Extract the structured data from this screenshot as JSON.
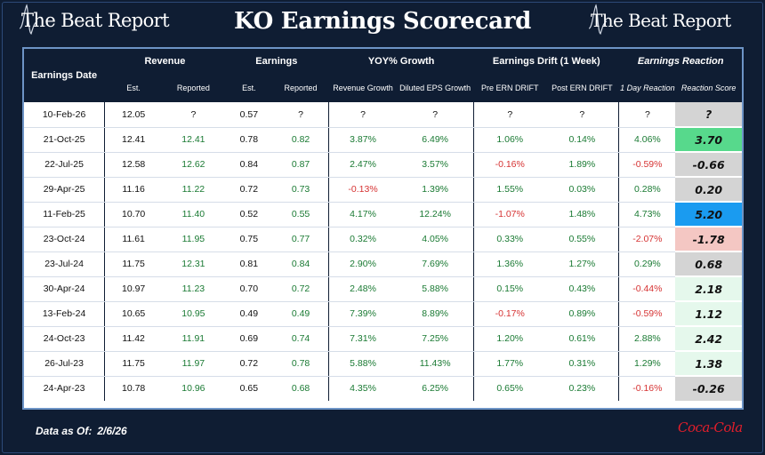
{
  "header": {
    "logo_left": "The Beat Report",
    "logo_right": "The Beat Report",
    "title": "KO Earnings Scorecard"
  },
  "table": {
    "group_headers": {
      "date": "Earnings Date",
      "revenue": "Revenue",
      "earnings": "Earnings",
      "yoy": "YOY% Growth",
      "drift": "Earnings Drift (1 Week)",
      "reaction": "Earnings Reaction"
    },
    "sub_headers": {
      "rev_est": "Est.",
      "rev_rep": "Reported",
      "earn_est": "Est.",
      "earn_rep": "Reported",
      "rev_growth": "Revenue Growth",
      "eps_growth": "Diluted EPS Growth",
      "pre_drift": "Pre ERN DRIFT",
      "post_drift": "Post ERN DRIFT",
      "day_reaction": "1 Day Reaction",
      "score": "Reaction Score"
    },
    "rows": [
      {
        "date": "10-Feb-26",
        "rev_est": "12.05",
        "rev_rep": "?",
        "earn_est": "0.57",
        "earn_rep": "?",
        "rev_growth": "?",
        "eps_growth": "?",
        "pre_drift": "?",
        "post_drift": "?",
        "day_reaction": "?",
        "score": "?"
      },
      {
        "date": "21-Oct-25",
        "rev_est": "12.41",
        "rev_rep": "12.41",
        "earn_est": "0.78",
        "earn_rep": "0.82",
        "rev_growth": "3.87%",
        "eps_growth": "6.49%",
        "pre_drift": "1.06%",
        "post_drift": "0.14%",
        "day_reaction": "4.06%",
        "score": "3.70"
      },
      {
        "date": "22-Jul-25",
        "rev_est": "12.58",
        "rev_rep": "12.62",
        "earn_est": "0.84",
        "earn_rep": "0.87",
        "rev_growth": "2.47%",
        "eps_growth": "3.57%",
        "pre_drift": "-0.16%",
        "post_drift": "1.89%",
        "day_reaction": "-0.59%",
        "score": "-0.66"
      },
      {
        "date": "29-Apr-25",
        "rev_est": "11.16",
        "rev_rep": "11.22",
        "earn_est": "0.72",
        "earn_rep": "0.73",
        "rev_growth": "-0.13%",
        "eps_growth": "1.39%",
        "pre_drift": "1.55%",
        "post_drift": "0.03%",
        "day_reaction": "0.28%",
        "score": "0.20"
      },
      {
        "date": "11-Feb-25",
        "rev_est": "10.70",
        "rev_rep": "11.40",
        "earn_est": "0.52",
        "earn_rep": "0.55",
        "rev_growth": "4.17%",
        "eps_growth": "12.24%",
        "pre_drift": "-1.07%",
        "post_drift": "1.48%",
        "day_reaction": "4.73%",
        "score": "5.20"
      },
      {
        "date": "23-Oct-24",
        "rev_est": "11.61",
        "rev_rep": "11.95",
        "earn_est": "0.75",
        "earn_rep": "0.77",
        "rev_growth": "0.32%",
        "eps_growth": "4.05%",
        "pre_drift": "0.33%",
        "post_drift": "0.55%",
        "day_reaction": "-2.07%",
        "score": "-1.78"
      },
      {
        "date": "23-Jul-24",
        "rev_est": "11.75",
        "rev_rep": "12.31",
        "earn_est": "0.81",
        "earn_rep": "0.84",
        "rev_growth": "2.90%",
        "eps_growth": "7.69%",
        "pre_drift": "1.36%",
        "post_drift": "1.27%",
        "day_reaction": "0.29%",
        "score": "0.68"
      },
      {
        "date": "30-Apr-24",
        "rev_est": "10.97",
        "rev_rep": "11.23",
        "earn_est": "0.70",
        "earn_rep": "0.72",
        "rev_growth": "2.48%",
        "eps_growth": "5.88%",
        "pre_drift": "0.15%",
        "post_drift": "0.43%",
        "day_reaction": "-0.44%",
        "score": "2.18"
      },
      {
        "date": "13-Feb-24",
        "rev_est": "10.65",
        "rev_rep": "10.95",
        "earn_est": "0.49",
        "earn_rep": "0.49",
        "rev_growth": "7.39%",
        "eps_growth": "8.89%",
        "pre_drift": "-0.17%",
        "post_drift": "0.89%",
        "day_reaction": "-0.59%",
        "score": "1.12"
      },
      {
        "date": "24-Oct-23",
        "rev_est": "11.42",
        "rev_rep": "11.91",
        "earn_est": "0.69",
        "earn_rep": "0.74",
        "rev_growth": "7.31%",
        "eps_growth": "7.25%",
        "pre_drift": "1.20%",
        "post_drift": "0.61%",
        "day_reaction": "2.88%",
        "score": "2.42"
      },
      {
        "date": "26-Jul-23",
        "rev_est": "11.75",
        "rev_rep": "11.97",
        "earn_est": "0.72",
        "earn_rep": "0.78",
        "rev_growth": "5.88%",
        "eps_growth": "11.43%",
        "pre_drift": "1.77%",
        "post_drift": "0.31%",
        "day_reaction": "1.29%",
        "score": "1.38"
      },
      {
        "date": "24-Apr-23",
        "rev_est": "10.78",
        "rev_rep": "10.96",
        "earn_est": "0.65",
        "earn_rep": "0.68",
        "rev_growth": "4.35%",
        "eps_growth": "6.25%",
        "pre_drift": "0.65%",
        "post_drift": "0.23%",
        "day_reaction": "-0.16%",
        "score": "-0.26"
      }
    ]
  },
  "footer": {
    "data_as_of_label": "Data as Of:",
    "data_as_of_value": "2/6/26",
    "brand": "Coca-Cola"
  },
  "colors": {
    "background": "#0f1d33",
    "positive": "#1a7a33",
    "negative": "#d63333",
    "score_neutral": "#d4d4d4",
    "score_strong_positive": "#57d98c",
    "score_top": "#1a9bf0",
    "score_negative": "#f4c7c3",
    "score_light_positive": "#e5f8ec",
    "brand_red": "#e41e2b"
  }
}
